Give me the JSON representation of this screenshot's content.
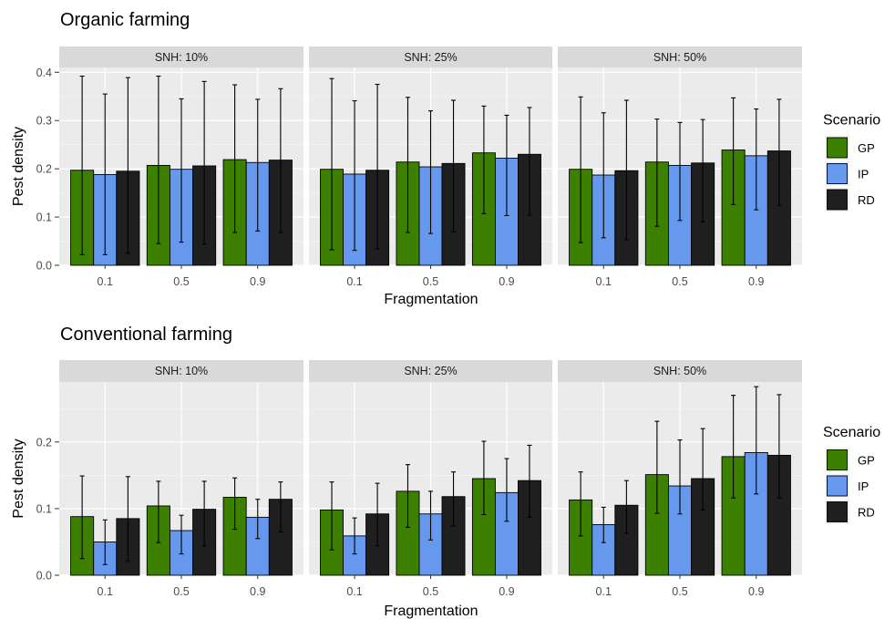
{
  "chart_data": [
    {
      "type": "bar",
      "title": "Organic farming",
      "xlabel": "Fragmentation",
      "ylabel": "Pest density",
      "ylim": [
        0,
        0.41
      ],
      "yticks": [
        "0.0",
        "0.1",
        "0.2",
        "0.3",
        "0.4"
      ],
      "ytick_values": [
        0,
        0.1,
        0.2,
        0.3,
        0.4
      ],
      "categories": [
        "0.1",
        "0.5",
        "0.9"
      ],
      "legend": {
        "title": "Scenario",
        "position": "right"
      },
      "series": [
        {
          "name": "GP",
          "color": "#3d8000"
        },
        {
          "name": "IP",
          "color": "#6699ee"
        },
        {
          "name": "RD",
          "color": "#1f1f1f"
        }
      ],
      "facets": [
        {
          "label": "SNH: 10%",
          "values": [
            [
              0.197,
              0.188,
              0.195
            ],
            [
              0.207,
              0.199,
              0.206
            ],
            [
              0.219,
              0.213,
              0.218
            ]
          ],
          "err_low": [
            [
              0.022,
              0.022,
              0.025
            ],
            [
              0.045,
              0.048,
              0.044
            ],
            [
              0.068,
              0.071,
              0.068
            ]
          ],
          "err_high": [
            [
              0.392,
              0.355,
              0.389
            ],
            [
              0.392,
              0.345,
              0.381
            ],
            [
              0.374,
              0.344,
              0.366
            ]
          ]
        },
        {
          "label": "SNH: 25%",
          "values": [
            [
              0.199,
              0.189,
              0.197
            ],
            [
              0.214,
              0.204,
              0.211
            ],
            [
              0.233,
              0.222,
              0.23
            ]
          ],
          "err_low": [
            [
              0.032,
              0.031,
              0.034
            ],
            [
              0.068,
              0.066,
              0.069
            ],
            [
              0.107,
              0.103,
              0.104
            ]
          ],
          "err_high": [
            [
              0.387,
              0.341,
              0.375
            ],
            [
              0.348,
              0.32,
              0.342
            ],
            [
              0.33,
              0.311,
              0.327
            ]
          ]
        },
        {
          "label": "SNH: 50%",
          "values": [
            [
              0.199,
              0.187,
              0.196
            ],
            [
              0.214,
              0.207,
              0.212
            ],
            [
              0.239,
              0.227,
              0.237
            ]
          ],
          "err_low": [
            [
              0.047,
              0.057,
              0.053
            ],
            [
              0.081,
              0.093,
              0.09
            ],
            [
              0.126,
              0.115,
              0.124
            ]
          ],
          "err_high": [
            [
              0.349,
              0.316,
              0.342
            ],
            [
              0.303,
              0.296,
              0.302
            ],
            [
              0.347,
              0.324,
              0.344
            ]
          ]
        }
      ]
    },
    {
      "type": "bar",
      "title": "Conventional farming",
      "xlabel": "Fragmentation",
      "ylabel": "Pest density",
      "ylim": [
        0,
        0.29
      ],
      "yticks": [
        "0.0",
        "0.1",
        "0.2"
      ],
      "ytick_values": [
        0,
        0.1,
        0.2
      ],
      "categories": [
        "0.1",
        "0.5",
        "0.9"
      ],
      "legend": {
        "title": "Scenario",
        "position": "right"
      },
      "series": [
        {
          "name": "GP",
          "color": "#3d8000"
        },
        {
          "name": "IP",
          "color": "#6699ee"
        },
        {
          "name": "RD",
          "color": "#1f1f1f"
        }
      ],
      "facets": [
        {
          "label": "SNH: 10%",
          "values": [
            [
              0.088,
              0.05,
              0.085
            ],
            [
              0.104,
              0.067,
              0.099
            ],
            [
              0.117,
              0.087,
              0.114
            ]
          ],
          "err_low": [
            [
              0.025,
              0.016,
              0.021
            ],
            [
              0.049,
              0.032,
              0.044
            ],
            [
              0.069,
              0.055,
              0.065
            ]
          ],
          "err_high": [
            [
              0.149,
              0.083,
              0.148
            ],
            [
              0.141,
              0.09,
              0.141
            ],
            [
              0.146,
              0.114,
              0.14
            ]
          ]
        },
        {
          "label": "SNH: 25%",
          "values": [
            [
              0.098,
              0.059,
              0.092
            ],
            [
              0.126,
              0.092,
              0.118
            ],
            [
              0.145,
              0.124,
              0.142
            ]
          ],
          "err_low": [
            [
              0.038,
              0.032,
              0.044
            ],
            [
              0.072,
              0.053,
              0.074
            ],
            [
              0.091,
              0.081,
              0.087
            ]
          ],
          "err_high": [
            [
              0.14,
              0.086,
              0.138
            ],
            [
              0.166,
              0.126,
              0.155
            ],
            [
              0.201,
              0.175,
              0.195
            ]
          ]
        },
        {
          "label": "SNH: 50%",
          "values": [
            [
              0.113,
              0.076,
              0.105
            ],
            [
              0.151,
              0.134,
              0.145
            ],
            [
              0.178,
              0.184,
              0.18
            ]
          ],
          "err_low": [
            [
              0.059,
              0.049,
              0.063
            ],
            [
              0.093,
              0.092,
              0.098
            ],
            [
              0.116,
              0.122,
              0.116
            ]
          ],
          "err_high": [
            [
              0.155,
              0.102,
              0.142
            ],
            [
              0.231,
              0.203,
              0.22
            ],
            [
              0.27,
              0.283,
              0.271
            ]
          ]
        }
      ]
    }
  ]
}
